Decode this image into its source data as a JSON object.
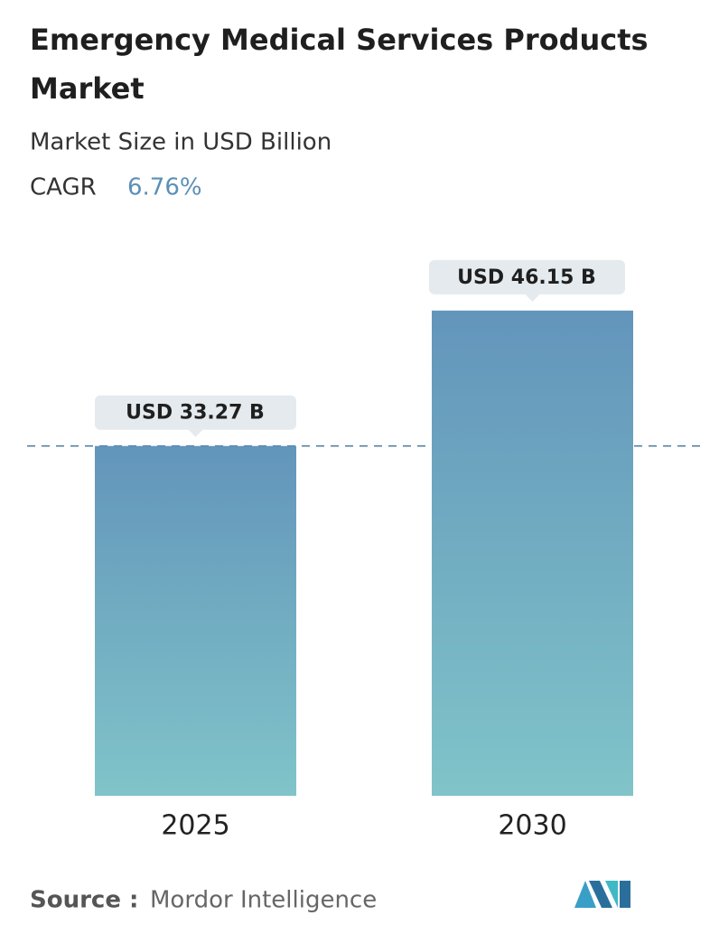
{
  "chart_data": {
    "type": "bar",
    "title": "Emergency Medical Services Products Market",
    "subtitle": "Market Size in USD Billion",
    "cagr_label": "CAGR",
    "cagr": "6.76%",
    "categories": [
      "2025",
      "2030"
    ],
    "values": [
      33.27,
      46.15
    ],
    "value_labels": [
      "USD 33.27 B",
      "USD 46.15 B"
    ],
    "color": "#6a9cc0",
    "source_label": "Source :",
    "source": "Mordor Intelligence"
  }
}
